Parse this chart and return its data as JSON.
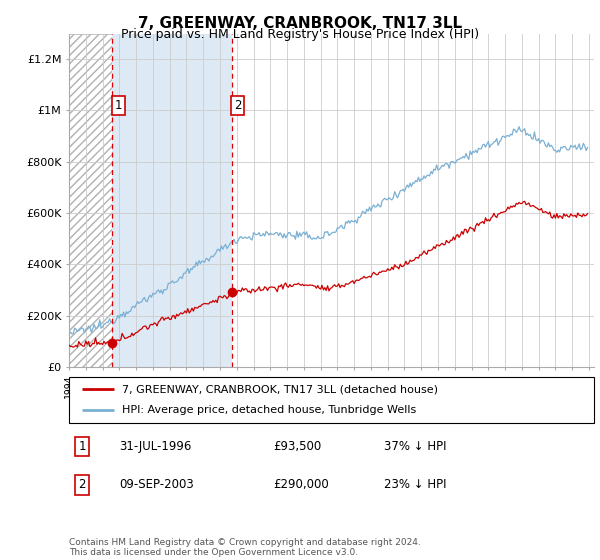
{
  "title": "7, GREENWAY, CRANBROOK, TN17 3LL",
  "subtitle": "Price paid vs. HM Land Registry's House Price Index (HPI)",
  "ylim": [
    0,
    1300000
  ],
  "yticks": [
    0,
    200000,
    400000,
    600000,
    800000,
    1000000,
    1200000
  ],
  "ytick_labels": [
    "£0",
    "£200K",
    "£400K",
    "£600K",
    "£800K",
    "£1M",
    "£1.2M"
  ],
  "sale1_date": 1996.58,
  "sale1_price": 93500,
  "sale2_date": 2003.69,
  "sale2_price": 290000,
  "legend_line1": "7, GREENWAY, CRANBROOK, TN17 3LL (detached house)",
  "legend_line2": "HPI: Average price, detached house, Tunbridge Wells",
  "footnote": "Contains HM Land Registry data © Crown copyright and database right 2024.\nThis data is licensed under the Open Government Licence v3.0.",
  "grid_color": "#cccccc",
  "red_line_color": "#cc0000",
  "blue_line_color": "#7ab0d4",
  "hatch_edgecolor": "#b0b0b0",
  "lightblue_bg": "#ddeaf5",
  "title_fontsize": 11,
  "subtitle_fontsize": 9
}
